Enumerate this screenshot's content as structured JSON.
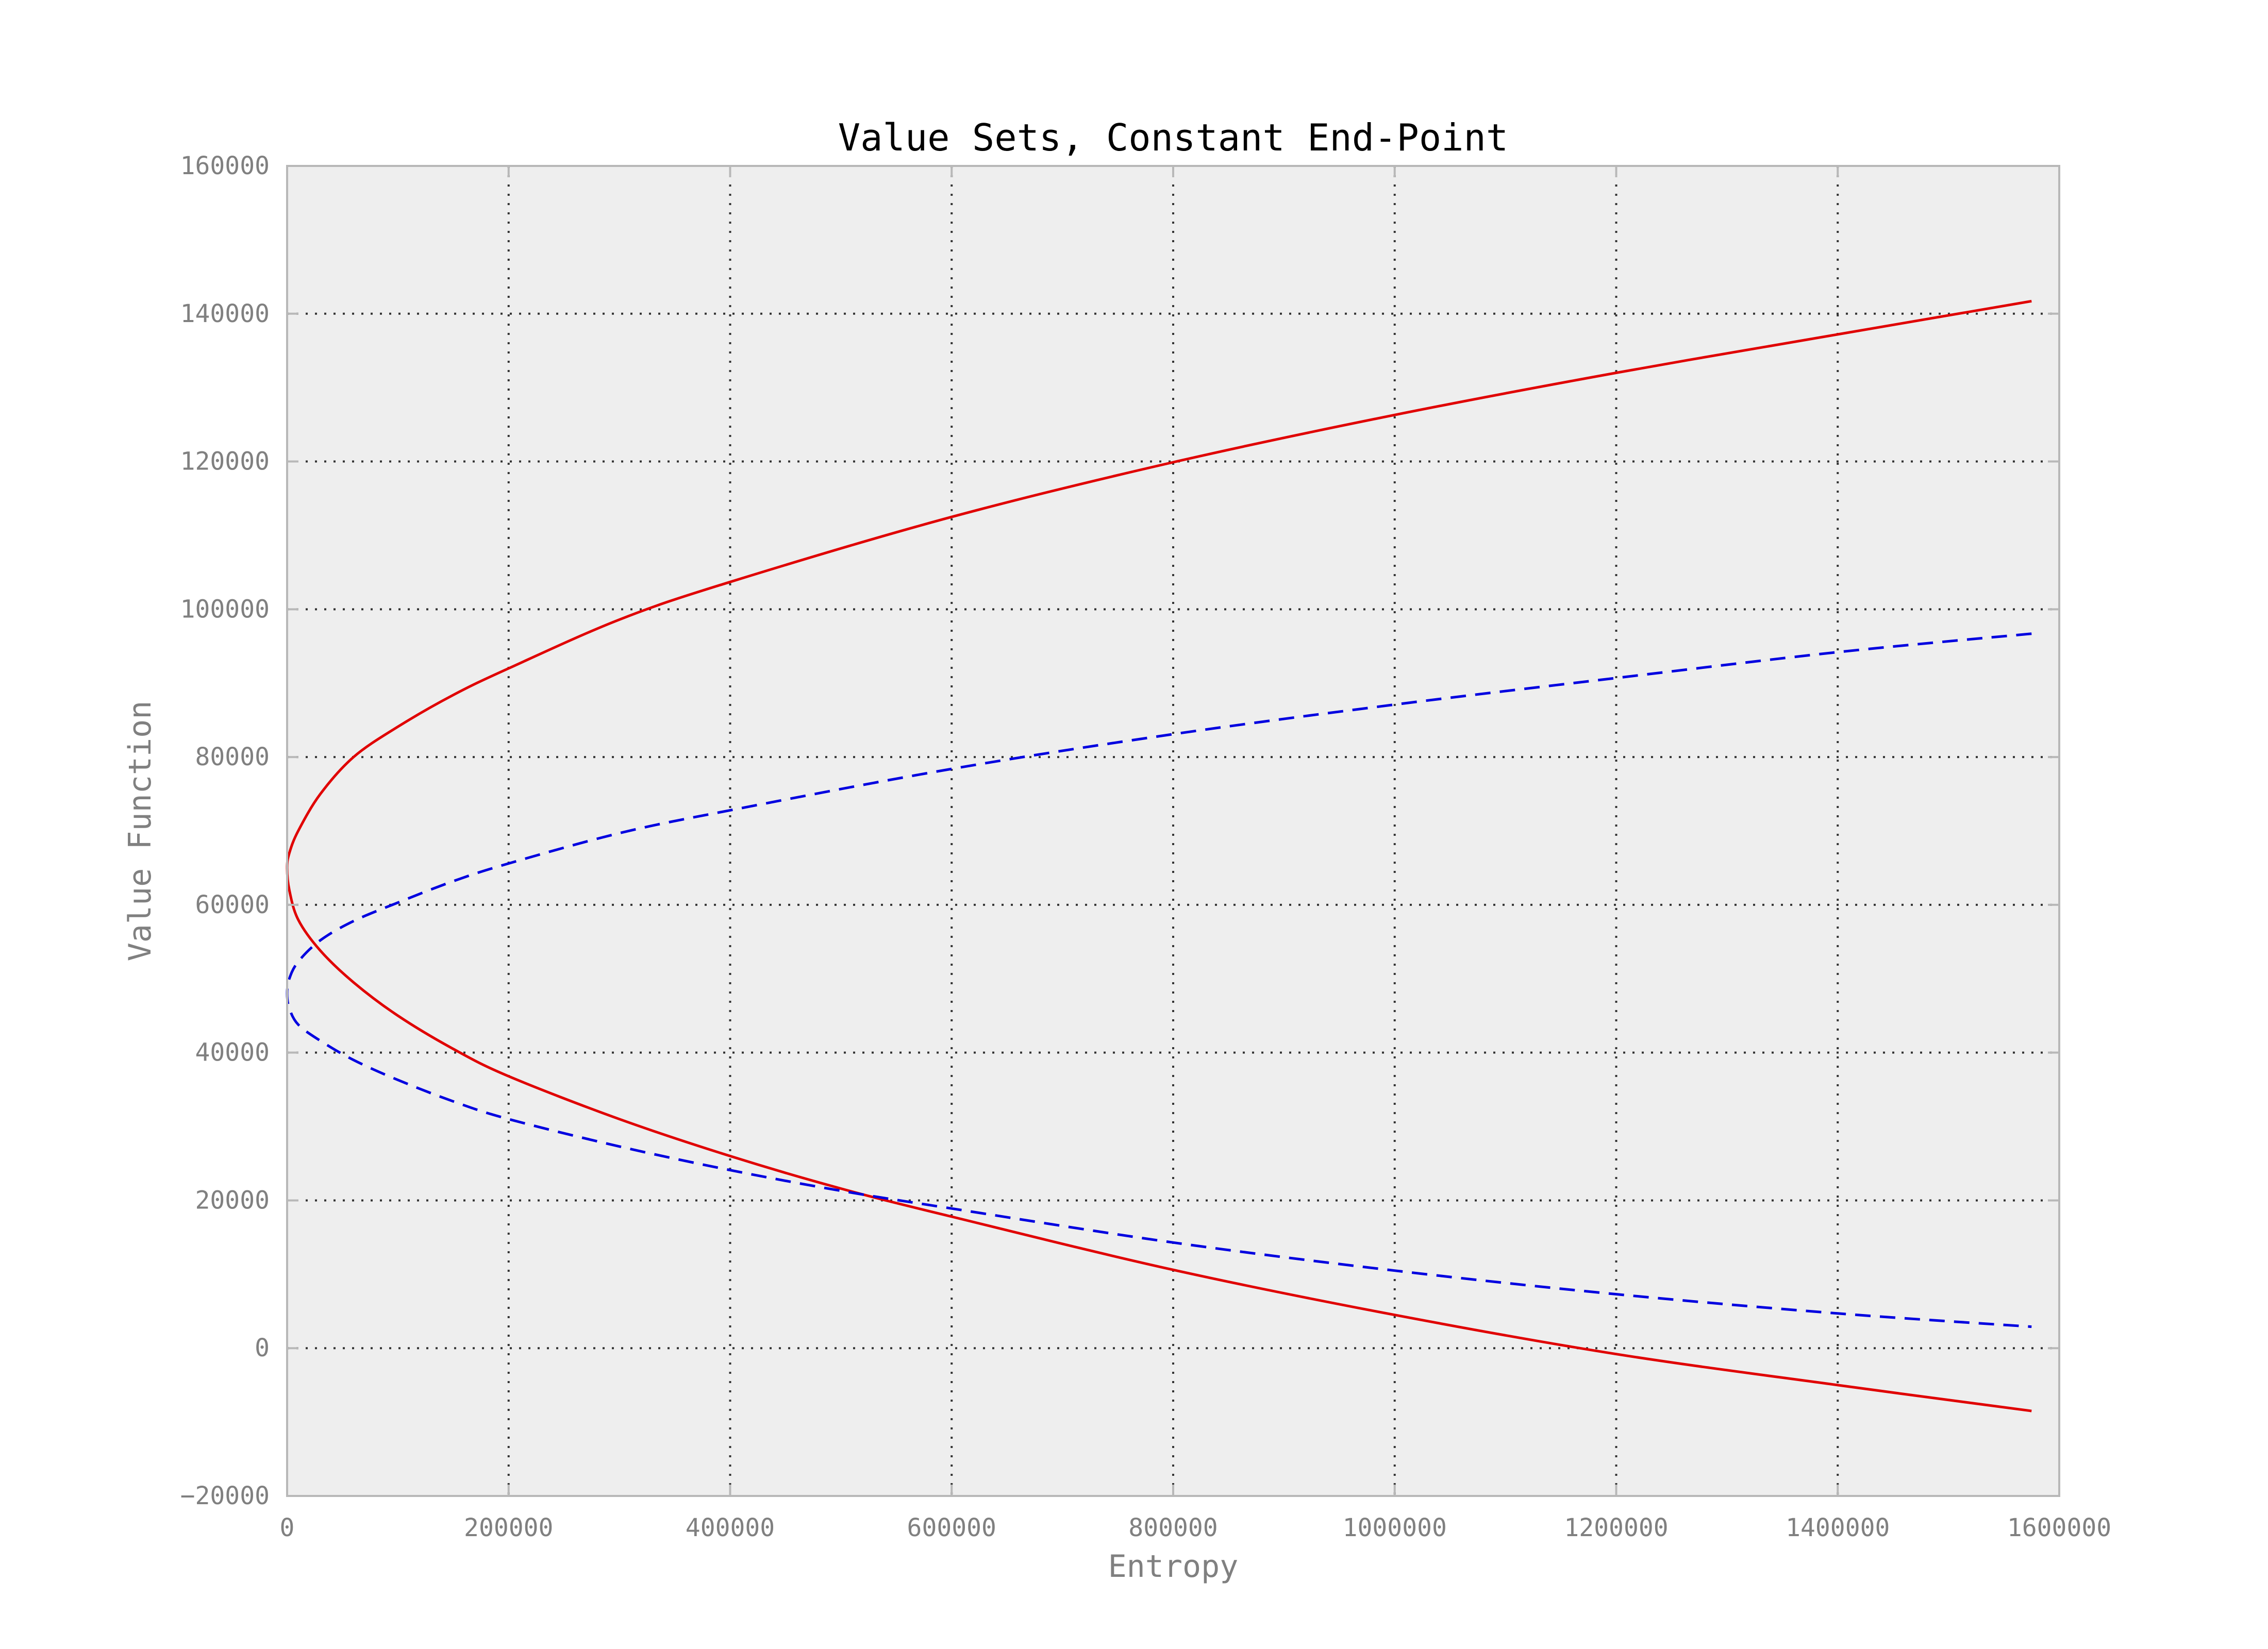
{
  "chart_data": {
    "type": "line",
    "title": "Value Sets, Constant End-Point",
    "xlabel": "Entropy",
    "ylabel": "Value Function",
    "xlim": [
      0,
      1600000
    ],
    "ylim": [
      -20000,
      160000
    ],
    "xticks": [
      0,
      200000,
      400000,
      600000,
      800000,
      1000000,
      1200000,
      1400000,
      1600000
    ],
    "xtick_labels": [
      "0",
      "200000",
      "400000",
      "600000",
      "800000",
      "1000000",
      "1200000",
      "1400000",
      "1600000"
    ],
    "yticks": [
      -20000,
      0,
      20000,
      40000,
      60000,
      80000,
      100000,
      120000,
      140000,
      160000
    ],
    "ytick_labels": [
      "−20000",
      "0",
      "20000",
      "40000",
      "60000",
      "80000",
      "100000",
      "120000",
      "140000",
      "160000"
    ],
    "grid": true,
    "background": "#eeeeee",
    "series": [
      {
        "color": "#e00000",
        "style": "solid",
        "points": [
          [
            1575000,
            141700
          ],
          [
            1400000,
            137200
          ],
          [
            1200000,
            132000
          ],
          [
            1000000,
            126300
          ],
          [
            800000,
            119900
          ],
          [
            600000,
            112500
          ],
          [
            400000,
            103700
          ],
          [
            300000,
            98600
          ],
          [
            200000,
            92000
          ],
          [
            150000,
            88400
          ],
          [
            100000,
            84100
          ],
          [
            60000,
            80000
          ],
          [
            30000,
            75000
          ],
          [
            10000,
            70000
          ],
          [
            2000,
            67000
          ],
          [
            0,
            65000
          ],
          [
            2000,
            62000
          ],
          [
            10000,
            58000
          ],
          [
            30000,
            53800
          ],
          [
            60000,
            49500
          ],
          [
            100000,
            45000
          ],
          [
            150000,
            40500
          ],
          [
            200000,
            36800
          ],
          [
            300000,
            31000
          ],
          [
            400000,
            26000
          ],
          [
            500000,
            21600
          ],
          [
            600000,
            17800
          ],
          [
            800000,
            10600
          ],
          [
            1000000,
            4500
          ],
          [
            1200000,
            -800
          ],
          [
            1400000,
            -5000
          ],
          [
            1575000,
            -8500
          ]
        ]
      },
      {
        "color": "#0000e0",
        "style": "dashed",
        "points": [
          [
            1575000,
            96700
          ],
          [
            1400000,
            94200
          ],
          [
            1200000,
            90700
          ],
          [
            1000000,
            87100
          ],
          [
            800000,
            83100
          ],
          [
            600000,
            78400
          ],
          [
            400000,
            72800
          ],
          [
            300000,
            69700
          ],
          [
            200000,
            65600
          ],
          [
            150000,
            63200
          ],
          [
            100000,
            60300
          ],
          [
            60000,
            57800
          ],
          [
            30000,
            55200
          ],
          [
            10000,
            52300
          ],
          [
            2000,
            50000
          ],
          [
            0,
            48000
          ],
          [
            2000,
            46000
          ],
          [
            10000,
            43800
          ],
          [
            30000,
            41600
          ],
          [
            60000,
            39000
          ],
          [
            100000,
            36300
          ],
          [
            150000,
            33400
          ],
          [
            200000,
            31000
          ],
          [
            300000,
            27300
          ],
          [
            400000,
            24100
          ],
          [
            500000,
            21300
          ],
          [
            600000,
            18900
          ],
          [
            800000,
            14300
          ],
          [
            1000000,
            10500
          ],
          [
            1200000,
            7300
          ],
          [
            1400000,
            4700
          ],
          [
            1575000,
            2900
          ]
        ]
      }
    ]
  }
}
